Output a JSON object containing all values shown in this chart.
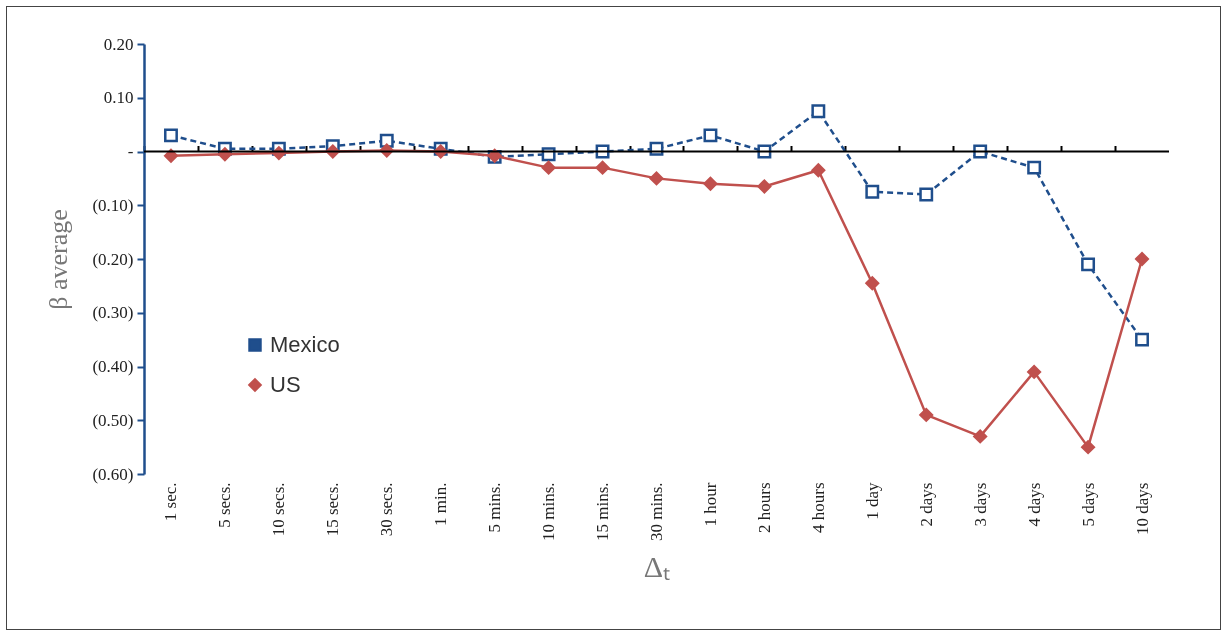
{
  "chart_data": {
    "type": "line",
    "xlabel": "Δₜ",
    "ylabel": "β average",
    "categories": [
      "1 sec.",
      "5 secs.",
      "10 secs.",
      "15 secs.",
      "30 secs.",
      "1 min.",
      "5 mins.",
      "10 mins.",
      "15 mins.",
      "30 mins.",
      "1 hour",
      "2 hours",
      "4 hours",
      "1 day",
      "2 days",
      "3 days",
      "4 days",
      "5 days",
      "10 days"
    ],
    "series": [
      {
        "name": "Mexico",
        "color": "#1f4e8c",
        "marker": "square",
        "line_style": "dashed",
        "values": [
          0.03,
          0.005,
          0.005,
          0.01,
          0.02,
          0.005,
          -0.01,
          -0.005,
          0,
          0.005,
          0.03,
          0,
          0.075,
          -0.075,
          -0.08,
          0,
          -0.03,
          -0.21,
          -0.35
        ]
      },
      {
        "name": "US",
        "color": "#c0504d",
        "marker": "diamond",
        "line_style": "solid",
        "values": [
          -0.008,
          -0.005,
          -0.003,
          0,
          0.002,
          0,
          -0.008,
          -0.03,
          -0.03,
          -0.05,
          -0.06,
          -0.065,
          -0.035,
          -0.245,
          -0.49,
          -0.53,
          -0.41,
          -0.55,
          -0.2
        ]
      }
    ],
    "ylim": [
      -0.6,
      0.2
    ],
    "yticks": [
      {
        "value": 0.2,
        "label": "0.20"
      },
      {
        "value": 0.1,
        "label": "0.10"
      },
      {
        "value": 0,
        "label": "-"
      },
      {
        "value": -0.1,
        "label": "(0.10)"
      },
      {
        "value": -0.2,
        "label": "(0.20)"
      },
      {
        "value": -0.3,
        "label": "(0.30)"
      },
      {
        "value": -0.4,
        "label": "(0.40)"
      },
      {
        "value": -0.5,
        "label": "(0.50)"
      },
      {
        "value": -0.6,
        "label": "(0.60)"
      }
    ],
    "ref_lines": [
      {
        "axis": "y",
        "value": 0,
        "color": "#000000"
      }
    ],
    "grid": false,
    "legend": "bottom left"
  }
}
